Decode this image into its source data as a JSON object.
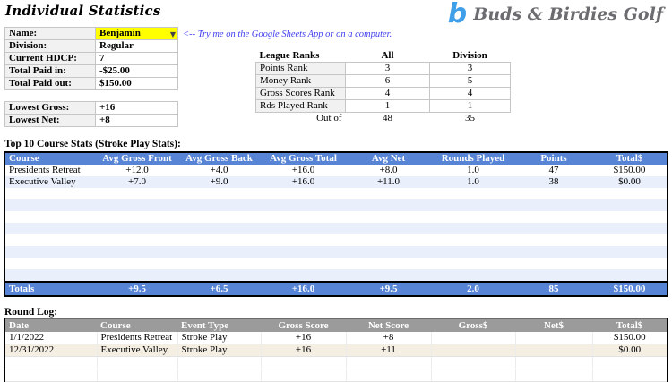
{
  "title": "Individual Statistics",
  "logo": {
    "mark": "b",
    "text": "Buds & Birdies Golf"
  },
  "note": "<-- Try me on the Google Sheets App or on a computer.",
  "player_info": {
    "rows": [
      {
        "label": "Name:",
        "value": "Benjamin"
      },
      {
        "label": "Division:",
        "value": "Regular"
      },
      {
        "label": "Current HDCP:",
        "value": "7"
      },
      {
        "label": "Total Paid in:",
        "value": "-$25.00"
      },
      {
        "label": "Total Paid out:",
        "value": "$150.00"
      }
    ]
  },
  "lowest": {
    "rows": [
      {
        "label": "Lowest Gross:",
        "value": "+16"
      },
      {
        "label": "Lowest Net:",
        "value": "+8"
      }
    ]
  },
  "league_ranks": {
    "headers": [
      "League Ranks",
      "All",
      "Division"
    ],
    "rows": [
      [
        "Points Rank",
        "3",
        "3"
      ],
      [
        "Money Rank",
        "6",
        "5"
      ],
      [
        "Gross Scores Rank",
        "4",
        "4"
      ],
      [
        "Rds Played Rank",
        "1",
        "1"
      ]
    ],
    "footer": [
      "Out of",
      "48",
      "35"
    ]
  },
  "course_stats": {
    "section_label": "Top 10 Course Stats (Stroke Play Stats):",
    "headers": [
      "Course",
      "Avg Gross Front",
      "Avg Gross Back",
      "Avg Gross Total",
      "Avg Net",
      "Rounds Played",
      "Points",
      "Total$"
    ],
    "rows": [
      [
        "Presidents Retreat",
        "+12.0",
        "+4.0",
        "+16.0",
        "+8.0",
        "1.0",
        "47",
        "$150.00"
      ],
      [
        "Executive Valley",
        "+7.0",
        "+9.0",
        "+16.0",
        "+11.0",
        "1.0",
        "38",
        "$0.00"
      ]
    ],
    "blank_row_count": 8,
    "totals": [
      "Totals",
      "+9.5",
      "+6.5",
      "+16.0",
      "+9.5",
      "2.0",
      "85",
      "$150.00"
    ]
  },
  "round_log": {
    "section_label": "Round Log:",
    "headers": [
      "Date",
      "Course",
      "Event Type",
      "Gross Score",
      "Net Score",
      "Gross$",
      "Net$",
      "Total$"
    ],
    "rows": [
      [
        "1/1/2022",
        "Presidents Retreat",
        "Stroke Play",
        "+16",
        "+8",
        "",
        "",
        "$150.00"
      ],
      [
        "12/31/2022",
        "Executive Valley",
        "Stroke Play",
        "+16",
        "+11",
        "",
        "",
        "$0.00"
      ]
    ],
    "blank_row_count": 2
  },
  "colors": {
    "accent_blue": "#5884d6",
    "band_blue": "#e9f0fb",
    "header_gray": "#9b9b9b",
    "band_cream": "#f4eee3",
    "highlight_yellow": "#ffff00",
    "note_blue": "#3d3df0",
    "logo_blue": "#3f9fe8"
  }
}
